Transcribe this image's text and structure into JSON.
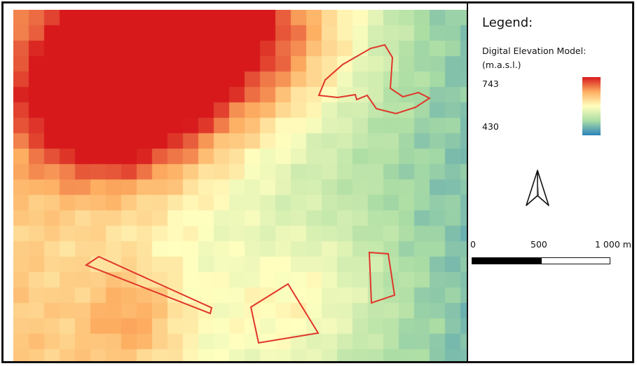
{
  "legend": {
    "title": "Legend:",
    "layer_name": "Digital Elevation Model:",
    "units": "(m.a.s.l.)",
    "max_value": "743",
    "min_value": "430",
    "ramp_colors": [
      "#d7191c",
      "#fdae61",
      "#ffffbf",
      "#abdda4",
      "#2b83ba"
    ]
  },
  "scale_bar": {
    "label_0": "0",
    "label_mid": "500",
    "label_end": "1 000 m"
  },
  "map": {
    "polygon_outline_color": "#e0362a",
    "polygon_count": 4
  }
}
